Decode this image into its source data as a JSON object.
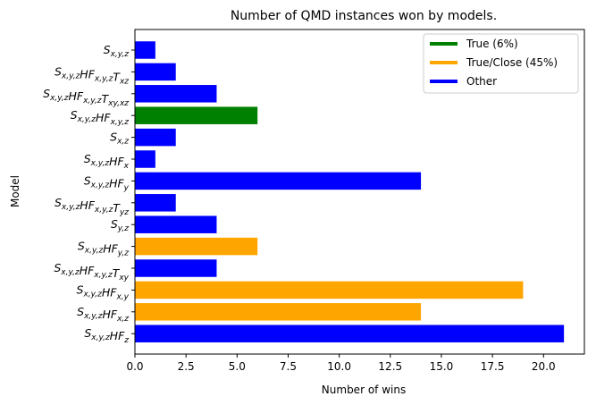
{
  "chart_data": {
    "type": "bar",
    "orientation": "horizontal",
    "title": "Number of QMD instances won by models.",
    "xlabel": "Number of wins",
    "ylabel": "Model",
    "xlim": [
      0,
      22
    ],
    "x_ticks": [
      "0.0",
      "2.5",
      "5.0",
      "7.5",
      "10.0",
      "12.5",
      "15.0",
      "17.5",
      "20.0"
    ],
    "x_tick_values": [
      0,
      2.5,
      5,
      7.5,
      10,
      12.5,
      15,
      17.5,
      20
    ],
    "grid": false,
    "legend_position": "top-right",
    "legend": [
      {
        "label": "True (6%)",
        "color": "#008000"
      },
      {
        "label": "True/Close (45%)",
        "color": "#ffa500"
      },
      {
        "label": "Other",
        "color": "#0000ff"
      }
    ],
    "bars": [
      {
        "label": {
          "base": "S",
          "sub": "x,y,z",
          "parts": []
        },
        "value": 1,
        "color": "#0000ff"
      },
      {
        "label": {
          "base": "S",
          "sub": "x,y,z",
          "parts": [
            {
              "b": "HF",
              "s": "x,y,z"
            },
            {
              "b": "T",
              "s": "xz"
            }
          ]
        },
        "value": 2,
        "color": "#0000ff"
      },
      {
        "label": {
          "base": "S",
          "sub": "x,y,z",
          "parts": [
            {
              "b": "HF",
              "s": "x,y,z"
            },
            {
              "b": "T",
              "s": "xy,xz"
            }
          ]
        },
        "value": 4,
        "color": "#0000ff"
      },
      {
        "label": {
          "base": "S",
          "sub": "x,y,z",
          "parts": [
            {
              "b": "HF",
              "s": "x,y,z"
            }
          ]
        },
        "value": 6,
        "color": "#008000"
      },
      {
        "label": {
          "base": "S",
          "sub": "x,z",
          "parts": []
        },
        "value": 2,
        "color": "#0000ff"
      },
      {
        "label": {
          "base": "S",
          "sub": "x,y,z",
          "parts": [
            {
              "b": "HF",
              "s": "x"
            }
          ]
        },
        "value": 1,
        "color": "#0000ff"
      },
      {
        "label": {
          "base": "S",
          "sub": "x,y,z",
          "parts": [
            {
              "b": "HF",
              "s": "y"
            }
          ]
        },
        "value": 14,
        "color": "#0000ff"
      },
      {
        "label": {
          "base": "S",
          "sub": "x,y,z",
          "parts": [
            {
              "b": "HF",
              "s": "x,y,z"
            },
            {
              "b": "T",
              "s": "yz"
            }
          ]
        },
        "value": 2,
        "color": "#0000ff"
      },
      {
        "label": {
          "base": "S",
          "sub": "y,z",
          "parts": []
        },
        "value": 4,
        "color": "#0000ff"
      },
      {
        "label": {
          "base": "S",
          "sub": "x,y,z",
          "parts": [
            {
              "b": "HF",
              "s": "y,z"
            }
          ]
        },
        "value": 6,
        "color": "#ffa500"
      },
      {
        "label": {
          "base": "S",
          "sub": "x,y,z",
          "parts": [
            {
              "b": "HF",
              "s": "x,y,z"
            },
            {
              "b": "T",
              "s": "xy"
            }
          ]
        },
        "value": 4,
        "color": "#0000ff"
      },
      {
        "label": {
          "base": "S",
          "sub": "x,y,z",
          "parts": [
            {
              "b": "HF",
              "s": "x,y"
            }
          ]
        },
        "value": 19,
        "color": "#ffa500"
      },
      {
        "label": {
          "base": "S",
          "sub": "x,y,z",
          "parts": [
            {
              "b": "HF",
              "s": "x,z"
            }
          ]
        },
        "value": 14,
        "color": "#ffa500"
      },
      {
        "label": {
          "base": "S",
          "sub": "x,y,z",
          "parts": [
            {
              "b": "HF",
              "s": "z"
            }
          ]
        },
        "value": 21,
        "color": "#0000ff"
      }
    ]
  }
}
